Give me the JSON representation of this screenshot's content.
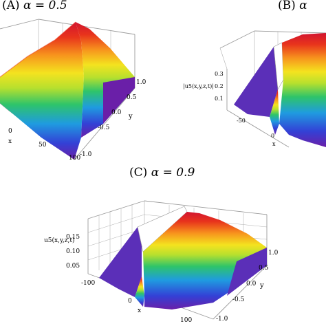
{
  "chart_data": [
    {
      "type": "surface3d",
      "panel": "(A)",
      "title": "(A) α = 0.5",
      "title_prefix": "(A)",
      "title_param": "α = 0.5",
      "alpha": 0.5,
      "xlabel": "x",
      "ylabel": "y",
      "zlabel": "",
      "x_ticks": [
        "0",
        "50",
        "100"
      ],
      "y_ticks": [
        "1.0",
        "0.5",
        "0.0",
        "-0.5",
        "-1.0"
      ],
      "z_ticks": [],
      "x_range": [
        -40,
        100
      ],
      "y_range": [
        -1,
        1
      ],
      "peak_x": 10,
      "profile": "wide sech-like ridge along y, amplitude decaying slowly in x"
    },
    {
      "type": "surface3d",
      "panel": "(B)",
      "title": "(B) α",
      "title_prefix": "(B)",
      "title_param": "α",
      "xlabel": "x",
      "ylabel": "",
      "zlabel": "|u5(x,y,z,t)|",
      "x_ticks": [
        "-50",
        "0"
      ],
      "y_ticks": [],
      "z_ticks": [
        "0.3",
        "0.2",
        "0.1"
      ],
      "z_range": [
        0.05,
        0.35
      ],
      "profile": "narrow ridge with clipped flat top near x = 0, sharp rise, smooth decay"
    },
    {
      "type": "surface3d",
      "panel": "(C)",
      "title": "(C) α = 0.9",
      "title_prefix": "(C)",
      "title_param": "α = 0.9",
      "alpha": 0.9,
      "xlabel": "x",
      "ylabel": "y",
      "zlabel": "u5(x,y,z,t)",
      "x_ticks": [
        "-100",
        "0",
        "100"
      ],
      "y_ticks": [
        "1.0",
        "0.5",
        "0.0",
        "-0.5",
        "-1.0"
      ],
      "z_ticks": [
        "0.15",
        "0.10",
        "0.05"
      ],
      "x_range": [
        -100,
        100
      ],
      "y_range": [
        -1,
        1
      ],
      "z_range": [
        0.03,
        0.16
      ],
      "peak_x": 10,
      "profile": "ridge clipped at plot top, steep on the left, slow decay on the right"
    }
  ],
  "colors": {
    "box": "#9a9a9a",
    "spectrum": [
      "#6a1fa8",
      "#3341d6",
      "#1f9be0",
      "#2ec46a",
      "#b7e02e",
      "#f4e31f",
      "#f7941d",
      "#e8341c",
      "#d2142f"
    ]
  }
}
